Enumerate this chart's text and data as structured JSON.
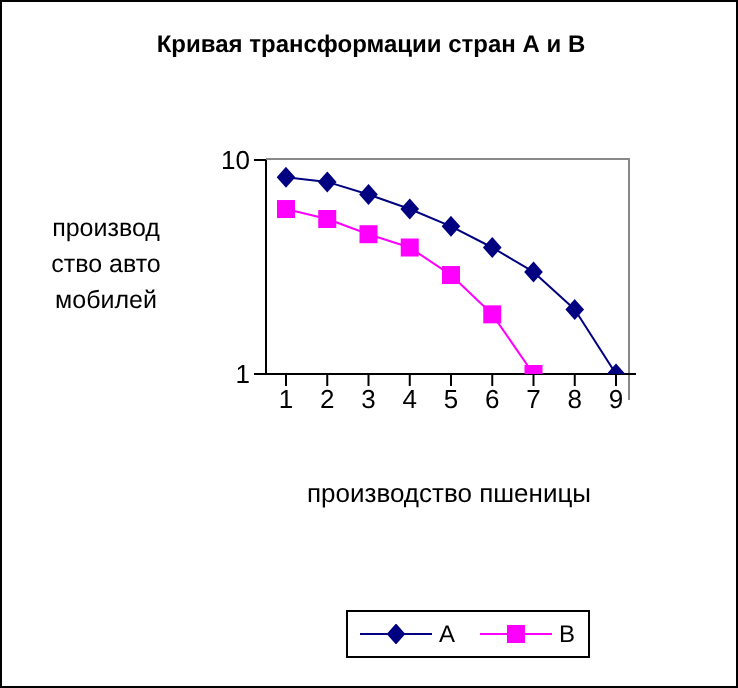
{
  "chart_data": {
    "type": "line",
    "title": "Кривая трансформации стран А и В",
    "xlabel": "производство пшеницы",
    "ylabel": "производство автомобилей",
    "categories": [
      "1",
      "2",
      "3",
      "4",
      "5",
      "6",
      "7",
      "8",
      "9"
    ],
    "series": [
      {
        "name": "A",
        "color": "#000080",
        "marker": "diamond",
        "values": [
          8.3,
          7.9,
          6.9,
          5.9,
          4.9,
          3.9,
          3,
          2,
          1
        ]
      },
      {
        "name": "B",
        "color": "#ff00ff",
        "marker": "square",
        "values": [
          5.9,
          5.3,
          4.5,
          3.9,
          2.9,
          1.9,
          1,
          null,
          null
        ]
      }
    ],
    "log": "y",
    "ylim": [
      1,
      10
    ],
    "yticks": [
      1,
      10
    ],
    "grid": false,
    "legend": "bottom",
    "line_style": "solid"
  }
}
